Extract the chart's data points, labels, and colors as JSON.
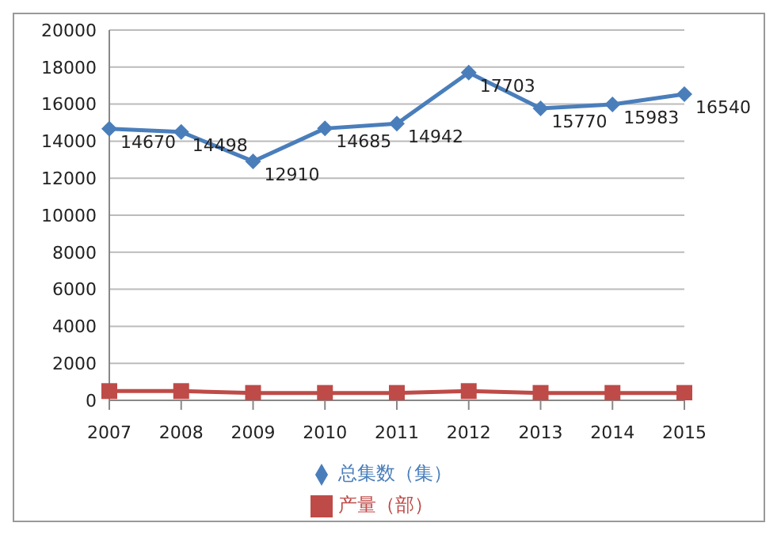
{
  "chart_data": {
    "type": "line",
    "categories": [
      "2007",
      "2008",
      "2009",
      "2010",
      "2011",
      "2012",
      "2013",
      "2014",
      "2015"
    ],
    "series": [
      {
        "name": "总集数（集）",
        "color": "#4a7ebb",
        "marker": "diamond",
        "values": [
          14670,
          14498,
          12910,
          14685,
          14942,
          17703,
          15770,
          15983,
          16540
        ],
        "value_labels": [
          "14670",
          "14498",
          "12910",
          "14685",
          "14942",
          "17703",
          "15770",
          "15983",
          "16540"
        ]
      },
      {
        "name": "产量（部）",
        "color": "#be4b48",
        "marker": "square",
        "values": [
          500,
          500,
          400,
          400,
          400,
          500,
          400,
          400,
          400
        ]
      }
    ],
    "ylim": [
      0,
      20000
    ],
    "yticks": [
      0,
      2000,
      4000,
      6000,
      8000,
      10000,
      12000,
      14000,
      16000,
      18000,
      20000
    ],
    "grid": "y",
    "legend": "bottom"
  }
}
